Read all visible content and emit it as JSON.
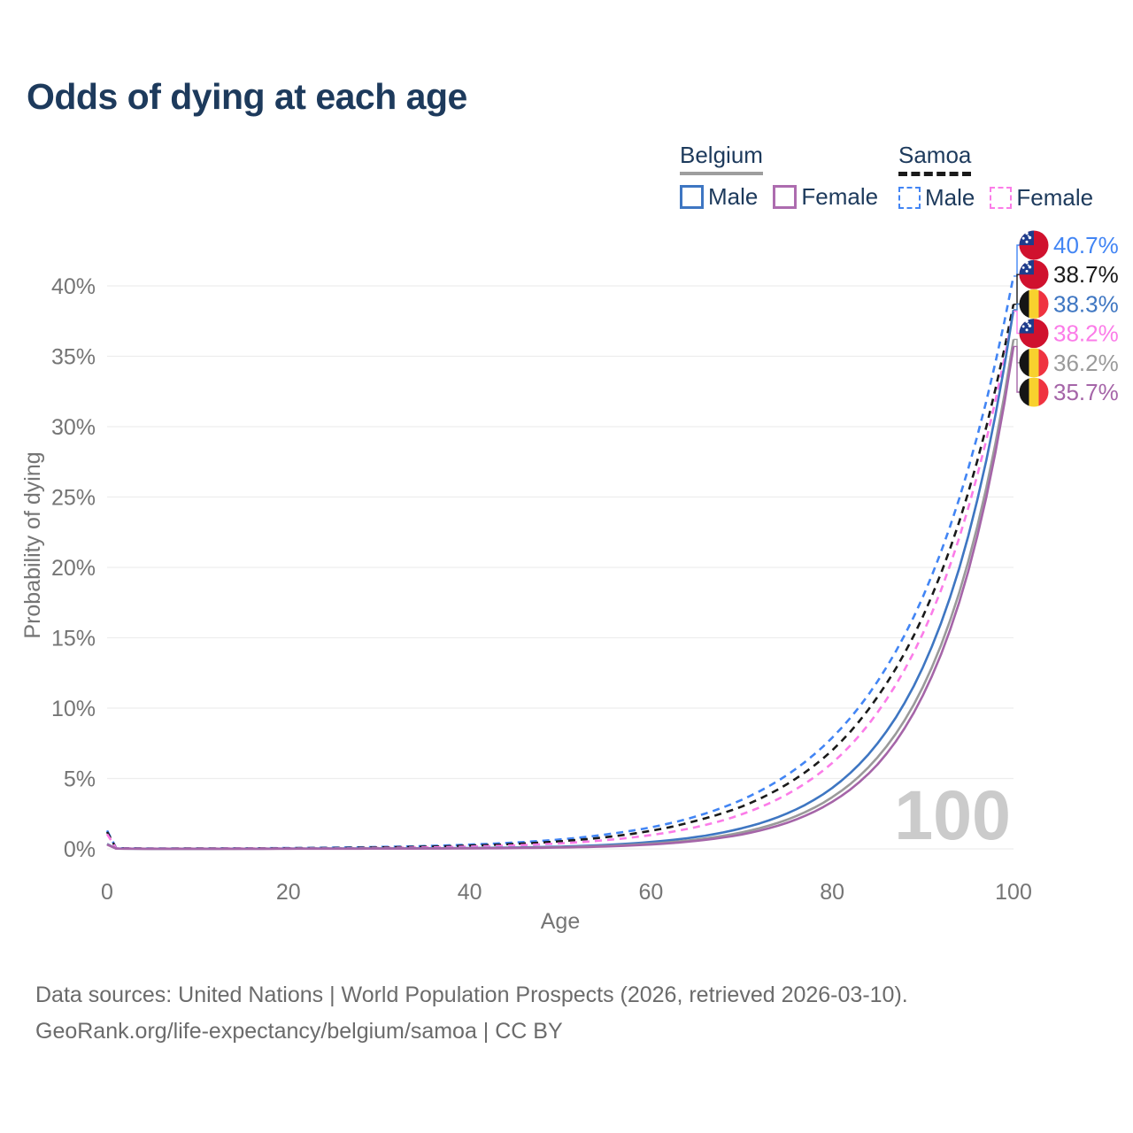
{
  "title": "Odds of dying at each age",
  "legend": {
    "belgium": {
      "label": "Belgium",
      "line_color": "#9e9e9e",
      "male_label": "Male",
      "male_color": "#3e76c2",
      "female_label": "Female",
      "female_color": "#ad6caf"
    },
    "samoa": {
      "label": "Samoa",
      "line_color": "#1a1a1a",
      "male_label": "Male",
      "male_color": "#4285f4",
      "female_label": "Female",
      "female_color": "#fb7ce8"
    }
  },
  "chart_data": {
    "type": "line",
    "title": "Odds of dying at each age",
    "xlabel": "Age",
    "ylabel": "Probability of dying",
    "xlim": [
      0,
      100
    ],
    "ylim": [
      0,
      43.5
    ],
    "x_ticks": [
      0,
      20,
      40,
      60,
      80,
      100
    ],
    "y_ticks": [
      0,
      5,
      10,
      15,
      20,
      25,
      30,
      35,
      40
    ],
    "y_tick_suffix": "%",
    "grid": "horizontal",
    "legend_position": "top-right",
    "watermark": "100",
    "series": [
      {
        "id": "samoa-male",
        "name": "Samoa Male",
        "flag": "samoa",
        "color": "#4285f4",
        "dashed": true,
        "end_value": 40.7,
        "end_label": "40.7%",
        "points": [
          [
            0,
            1.3
          ],
          [
            1,
            0.05
          ],
          [
            5,
            0.025
          ],
          [
            10,
            0.03
          ],
          [
            15,
            0.04
          ],
          [
            20,
            0.06
          ],
          [
            25,
            0.09
          ],
          [
            30,
            0.13
          ],
          [
            35,
            0.2
          ],
          [
            40,
            0.3
          ],
          [
            45,
            0.45
          ],
          [
            50,
            0.67
          ],
          [
            55,
            1.02
          ],
          [
            60,
            1.53
          ],
          [
            65,
            2.31
          ],
          [
            70,
            3.48
          ],
          [
            75,
            5.24
          ],
          [
            80,
            7.9
          ],
          [
            85,
            11.9
          ],
          [
            90,
            17.9
          ],
          [
            95,
            27.0
          ],
          [
            100,
            40.7
          ]
        ]
      },
      {
        "id": "samoa-both",
        "name": "Samoa",
        "flag": "samoa",
        "color": "#1a1a1a",
        "dashed": true,
        "end_value": 38.7,
        "end_label": "38.7%",
        "points": [
          [
            0,
            1.2
          ],
          [
            1,
            0.045
          ],
          [
            5,
            0.02
          ],
          [
            10,
            0.025
          ],
          [
            15,
            0.03
          ],
          [
            20,
            0.045
          ],
          [
            25,
            0.065
          ],
          [
            30,
            0.1
          ],
          [
            35,
            0.15
          ],
          [
            40,
            0.23
          ],
          [
            45,
            0.35
          ],
          [
            50,
            0.54
          ],
          [
            55,
            0.83
          ],
          [
            60,
            1.28
          ],
          [
            65,
            2.0
          ],
          [
            70,
            3.0
          ],
          [
            75,
            4.59
          ],
          [
            80,
            7.0
          ],
          [
            85,
            10.8
          ],
          [
            90,
            16.5
          ],
          [
            95,
            25.3
          ],
          [
            100,
            38.7
          ]
        ]
      },
      {
        "id": "samoa-female",
        "name": "Samoa Female",
        "flag": "samoa",
        "color": "#fb7ce8",
        "dashed": true,
        "end_value": 38.2,
        "end_label": "38.2%",
        "points": [
          [
            0,
            1.05
          ],
          [
            1,
            0.04
          ],
          [
            5,
            0.018
          ],
          [
            10,
            0.02
          ],
          [
            15,
            0.025
          ],
          [
            20,
            0.03
          ],
          [
            25,
            0.04
          ],
          [
            30,
            0.06
          ],
          [
            35,
            0.1
          ],
          [
            40,
            0.16
          ],
          [
            45,
            0.25
          ],
          [
            50,
            0.39
          ],
          [
            55,
            0.62
          ],
          [
            60,
            0.98
          ],
          [
            65,
            1.55
          ],
          [
            70,
            2.45
          ],
          [
            75,
            3.87
          ],
          [
            80,
            6.1
          ],
          [
            85,
            9.7
          ],
          [
            90,
            15.3
          ],
          [
            95,
            24.2
          ],
          [
            100,
            38.2
          ]
        ]
      },
      {
        "id": "belgium-male",
        "name": "Belgium Male",
        "flag": "belgium",
        "color": "#3e76c2",
        "dashed": false,
        "end_value": 38.3,
        "end_label": "38.3%",
        "points": [
          [
            0,
            0.35
          ],
          [
            1,
            0.02
          ],
          [
            5,
            0.008
          ],
          [
            10,
            0.008
          ],
          [
            15,
            0.012
          ],
          [
            20,
            0.02
          ],
          [
            25,
            0.025
          ],
          [
            30,
            0.03
          ],
          [
            35,
            0.04
          ],
          [
            40,
            0.06
          ],
          [
            45,
            0.1
          ],
          [
            50,
            0.16
          ],
          [
            55,
            0.28
          ],
          [
            60,
            0.49
          ],
          [
            65,
            0.84
          ],
          [
            70,
            1.46
          ],
          [
            75,
            2.51
          ],
          [
            80,
            4.33
          ],
          [
            85,
            7.5
          ],
          [
            90,
            12.9
          ],
          [
            95,
            22.2
          ],
          [
            100,
            38.3
          ]
        ]
      },
      {
        "id": "belgium-both",
        "name": "Belgium",
        "flag": "belgium",
        "color": "#9a9a9a",
        "dashed": false,
        "end_value": 36.2,
        "end_label": "36.2%",
        "points": [
          [
            0,
            0.33
          ],
          [
            1,
            0.018
          ],
          [
            5,
            0.007
          ],
          [
            10,
            0.007
          ],
          [
            15,
            0.01
          ],
          [
            20,
            0.015
          ],
          [
            25,
            0.02
          ],
          [
            30,
            0.024
          ],
          [
            35,
            0.032
          ],
          [
            40,
            0.047
          ],
          [
            45,
            0.075
          ],
          [
            50,
            0.12
          ],
          [
            55,
            0.21
          ],
          [
            60,
            0.37
          ],
          [
            65,
            0.66
          ],
          [
            70,
            1.17
          ],
          [
            75,
            2.07
          ],
          [
            80,
            3.67
          ],
          [
            85,
            6.5
          ],
          [
            90,
            11.5
          ],
          [
            95,
            20.4
          ],
          [
            100,
            36.2
          ]
        ]
      },
      {
        "id": "belgium-female",
        "name": "Belgium Female",
        "flag": "belgium",
        "color": "#a565a8",
        "dashed": false,
        "end_value": 35.7,
        "end_label": "35.7%",
        "points": [
          [
            0,
            0.3
          ],
          [
            1,
            0.016
          ],
          [
            5,
            0.006
          ],
          [
            10,
            0.006
          ],
          [
            15,
            0.008
          ],
          [
            20,
            0.01
          ],
          [
            25,
            0.013
          ],
          [
            30,
            0.017
          ],
          [
            35,
            0.023
          ],
          [
            40,
            0.035
          ],
          [
            45,
            0.055
          ],
          [
            50,
            0.095
          ],
          [
            55,
            0.17
          ],
          [
            60,
            0.31
          ],
          [
            65,
            0.57
          ],
          [
            70,
            1.02
          ],
          [
            75,
            1.85
          ],
          [
            80,
            3.34
          ],
          [
            85,
            6.0
          ],
          [
            90,
            10.9
          ],
          [
            95,
            19.7
          ],
          [
            100,
            35.7
          ]
        ]
      }
    ]
  },
  "flag_colors": {
    "samoa_red": "#d0112e",
    "samoa_blue": "#1e3c8c",
    "star_white": "#ffffff",
    "belgium_black": "#151515",
    "belgium_yellow": "#f8d12e",
    "belgium_red": "#ef3340"
  },
  "colors": {
    "title_text": "#1d3a5c",
    "legend_text": "#1d3a5c",
    "axis_text": "#757575",
    "grid": "#ededed",
    "watermark": "#cbcbcb",
    "footer_text": "#6b6b6b"
  },
  "footer": {
    "line1": "Data sources: United Nations | World Population Prospects (2026, retrieved 2026-03-10).",
    "line2": "GeoRank.org/life-expectancy/belgium/samoa | CC BY"
  }
}
